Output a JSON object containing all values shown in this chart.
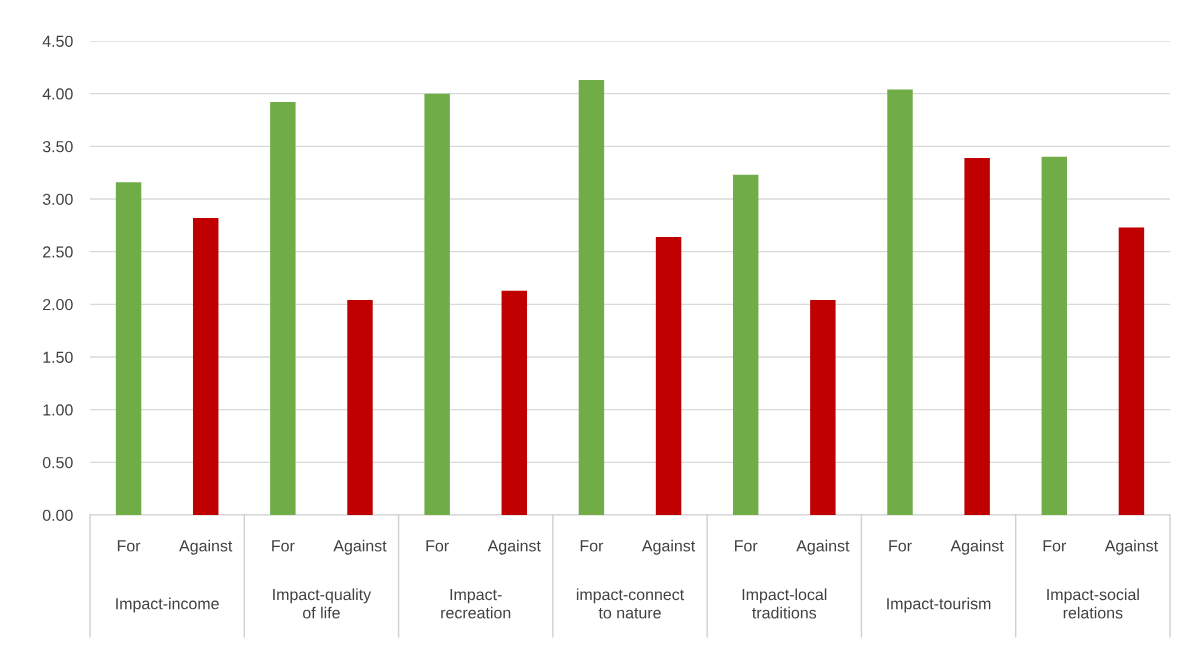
{
  "chart_data": {
    "type": "bar",
    "categories": [
      "Impact-income",
      "Impact-quality\nof life",
      "Impact-\nrecreation",
      "impact-connect\nto nature",
      "Impact-local\ntraditions",
      "Impact-tourism",
      "Impact-social\nrelations"
    ],
    "series": [
      {
        "name": "For",
        "color": "#70ad47",
        "values": [
          3.16,
          3.92,
          4.0,
          4.13,
          3.23,
          4.04,
          3.4
        ]
      },
      {
        "name": "Against",
        "color": "#c00000",
        "values": [
          2.82,
          2.04,
          2.13,
          2.64,
          2.04,
          3.39,
          2.73
        ]
      }
    ],
    "ylim": [
      0,
      4.5
    ],
    "yticks": [
      {
        "value": 0,
        "label": "0.00"
      },
      {
        "value": 0.5,
        "label": "0.50"
      },
      {
        "value": 1,
        "label": "1.00"
      },
      {
        "value": 1.5,
        "label": "1.50"
      },
      {
        "value": 2,
        "label": "2.00"
      },
      {
        "value": 2.5,
        "label": "2.50"
      },
      {
        "value": 3,
        "label": "3.00"
      },
      {
        "value": 3.5,
        "label": "3.50"
      },
      {
        "value": 4,
        "label": "4.00"
      },
      {
        "value": 4.5,
        "label": "4.50"
      }
    ],
    "grid": "y"
  }
}
